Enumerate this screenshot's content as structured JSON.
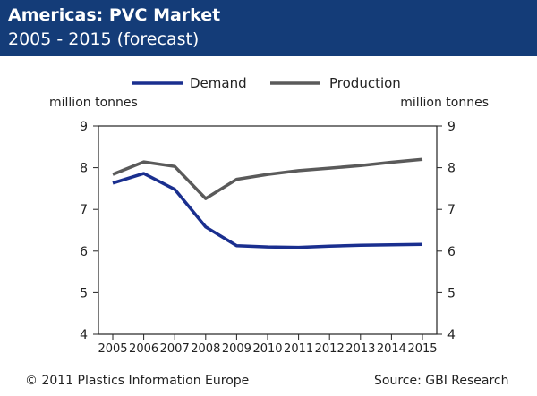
{
  "header": {
    "title": "Americas: PVC Market",
    "subtitle": "2005 - 2015 (forecast)"
  },
  "footer": {
    "copyright": "© 2011 Plastics Information Europe",
    "source": "Source: GBI Research"
  },
  "colors": {
    "header_bg": "#143c78",
    "demand": "#1a2f8f",
    "production": "#5a5a5a"
  },
  "chart_data": {
    "type": "line",
    "x": [
      "2005",
      "2006",
      "2007",
      "2008",
      "2009",
      "2010",
      "2011",
      "2012",
      "2013",
      "2014",
      "2015"
    ],
    "series": [
      {
        "name": "Demand",
        "values": [
          7.63,
          7.86,
          7.48,
          6.58,
          6.13,
          6.1,
          6.09,
          6.12,
          6.14,
          6.15,
          6.16
        ]
      },
      {
        "name": "Production",
        "values": [
          7.84,
          8.14,
          8.03,
          7.26,
          7.72,
          7.84,
          7.93,
          7.99,
          8.05,
          8.13,
          8.2
        ]
      }
    ],
    "ylabel_left": "million tonnes",
    "ylabel_right": "million tonnes",
    "ylim": [
      4,
      9
    ],
    "yticks": [
      "4",
      "5",
      "6",
      "7",
      "8",
      "9"
    ],
    "legend": "top",
    "grid": false
  }
}
